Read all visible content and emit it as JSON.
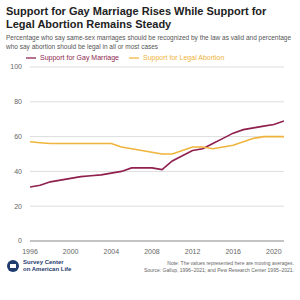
{
  "chart_data": {
    "type": "line",
    "title": "Support for Gay Marriage Rises While Support for Legal Abortion Remains Steady",
    "subtitle": "Percentage who say same-sex marriages should be recognized by the law as valid and percentage who say abortion should be legal in all or most cases",
    "annotations": {
      "note": [
        "Note: The values represented here are moving averages.",
        "Source: Gallup, 1996–2021; and Pew Research Center 1995–2021."
      ],
      "logo": [
        "Survey Center",
        "on American Life"
      ]
    },
    "x": [
      1996,
      1997,
      1998,
      1999,
      2000,
      2001,
      2002,
      2003,
      2004,
      2005,
      2006,
      2007,
      2008,
      2009,
      2010,
      2011,
      2012,
      2013,
      2014,
      2015,
      2016,
      2017,
      2018,
      2019,
      2020,
      2021
    ],
    "series": [
      {
        "name": "Support for Gay Marriage",
        "color": "#8e1f4e",
        "values": [
          31,
          32,
          34,
          35,
          36,
          37,
          37.5,
          38,
          39,
          40,
          42,
          42,
          42,
          41,
          46,
          49,
          52,
          53,
          56,
          59,
          62,
          64,
          65,
          66,
          67,
          69
        ]
      },
      {
        "name": "Support for Legal Abortion",
        "color": "#f0b43c",
        "values": [
          57,
          56.5,
          56,
          56,
          56,
          56,
          56,
          56,
          56,
          54,
          53,
          52,
          51,
          50,
          50,
          52,
          54,
          54,
          53,
          54,
          55,
          57,
          59,
          60,
          60,
          60
        ]
      }
    ],
    "xlim": [
      1996,
      2021
    ],
    "xticks": [
      1996,
      2000,
      2004,
      2008,
      2012,
      2016,
      2020
    ],
    "ylim": [
      0,
      100
    ],
    "yticks": [
      0,
      20,
      40,
      60,
      80,
      100
    ],
    "grid": true,
    "legend": "top"
  }
}
